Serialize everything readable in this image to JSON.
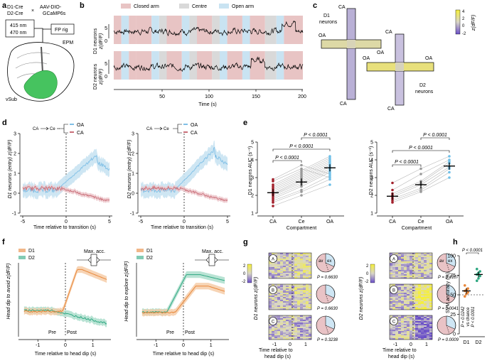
{
  "panel_labels": {
    "a": "a",
    "b": "b",
    "c": "c",
    "d": "d",
    "e": "e",
    "f": "f",
    "g": "g",
    "h": "h"
  },
  "panel_a": {
    "cre1": "D1-Cre",
    "cre2": "D2-Cre",
    "times": "×",
    "virus1": "AAV-DIO-",
    "virus2": "GCaMP6s",
    "wl1": "415 nm",
    "wl2": "470 nm",
    "rig": "FP rig",
    "maze": "EPM",
    "region": "vSub"
  },
  "panel_b": {
    "legend": [
      {
        "label": "Closed arm",
        "color": "#e8c4c4"
      },
      {
        "label": "Centre",
        "color": "#d9d9d9"
      },
      {
        "label": "Open arm",
        "color": "#c9e3f2"
      }
    ],
    "ylabel_d1": "D1 neurons",
    "ylabel_d2": "D2 neurons",
    "ylabel_unit": "z(dF/F)",
    "yticks_d1": [
      "5",
      "0"
    ],
    "yticks_d2": [
      "5",
      "0"
    ],
    "xticks": [
      "50",
      "100",
      "150",
      "200"
    ],
    "xlabel": "Time (s)"
  },
  "panel_c": {
    "d1_label1": "D1",
    "d1_label2": "neurons",
    "d2_label1": "D2",
    "d2_label2": "neurons",
    "arm_labels": [
      "CA",
      "OA",
      "OA",
      "CA",
      "CA",
      "OA",
      "OA",
      "CA"
    ],
    "colorbar_ticks": [
      "4",
      "2",
      "0",
      "-2"
    ],
    "colorbar_label": "z(dF/F)"
  },
  "panel_d": {
    "left_ylabel": "D1 neurons (entry) z(dF/F)",
    "right_ylabel": "D2 neurons (entry) z(dF/F)",
    "yticks": [
      "3",
      "2",
      "1",
      "0",
      "-1"
    ],
    "xticks": [
      "-5",
      "0",
      "5"
    ],
    "xlabel": "Time relative to transition (s)",
    "schematic": [
      "CA",
      "Ce"
    ],
    "legend": [
      {
        "label": "OA",
        "color": "#7fbfe6"
      },
      {
        "label": "CA",
        "color": "#c96e78"
      }
    ]
  },
  "panel_e": {
    "left_ylabel": "D1 neurons AUC (s⁻¹)",
    "right_ylabel": "D2 neurons AUC (s⁻¹)",
    "yticks_left": [
      "5",
      "4",
      "3",
      "2",
      "1"
    ],
    "yticks_right": [
      "5",
      "4",
      "3",
      "2",
      "1"
    ],
    "categories": [
      "CA",
      "Ce",
      "OA"
    ],
    "xlabel": "Compartment",
    "pvals": [
      "P < 0.0001",
      "P < 0.0001",
      "P < 0.0001"
    ]
  },
  "panel_f": {
    "left_ylabel": "Head dip to avoid z(dF/F)",
    "right_ylabel": "Head dip to explore z(dF/F)",
    "xticks": [
      "-1",
      "0",
      "1"
    ],
    "xlabel": "Time relative to head dip (s)",
    "pre": "Pre",
    "post": "Post",
    "max_acc": "Max. acc.",
    "legend": [
      {
        "label": "D1",
        "color": "#e8873a"
      },
      {
        "label": "D2",
        "color": "#2fa882"
      }
    ]
  },
  "panel_g": {
    "left_ylabel": "D1 neurons z(dF/F)",
    "right_ylabel": "D2 neurons z(dF/F)",
    "row_labels": [
      "A",
      "B",
      "C"
    ],
    "colorbar_ticks": [
      "2",
      "0",
      "-2"
    ],
    "pie_labels": [
      "av",
      "ex"
    ],
    "left_pvals": [
      "P = 0.6630",
      "P = 0.6630",
      "P = 0.3238"
    ],
    "right_pvals": [
      "P = 0.4107",
      "P = 0.0041",
      "P = 0.0009"
    ],
    "xticks": [
      "-1",
      "0",
      "1"
    ],
    "xlabel1": "Time relative to",
    "xlabel2": "head dip (s)"
  },
  "panel_h": {
    "ylabel": "SVM accuracy (%)",
    "yticks": [
      "100",
      "75",
      "50",
      "25",
      "0"
    ],
    "categories": [
      "D1",
      "D2"
    ],
    "pval_top": "P < 0.0001",
    "pval_side1": "P = 0.0242",
    "pval_side2": "vs chance",
    "pval_side3": "P < 0.0001"
  },
  "chart_data": [
    {
      "type": "scatter",
      "panel": "e-left",
      "categories": [
        "CA",
        "Ce",
        "OA"
      ],
      "ylabel": "D1 neurons AUC (s⁻¹)",
      "ylim": [
        1,
        5
      ],
      "means": [
        2.15,
        2.75,
        3.55
      ],
      "points": {
        "CA": [
          1.4,
          1.6,
          1.7,
          1.8,
          1.9,
          2.0,
          2.05,
          2.1,
          2.2,
          2.3,
          2.4,
          2.5,
          2.6,
          2.8,
          2.9
        ],
        "Ce": [
          2.0,
          2.2,
          2.3,
          2.5,
          2.6,
          2.7,
          2.8,
          2.9,
          3.0,
          3.1,
          3.2,
          3.3,
          3.4,
          3.5,
          3.7
        ],
        "OA": [
          2.6,
          2.9,
          3.1,
          3.3,
          3.4,
          3.5,
          3.6,
          3.7,
          3.8,
          3.9,
          4.0,
          4.1,
          4.2,
          3.0,
          3.2
        ]
      }
    },
    {
      "type": "scatter",
      "panel": "e-right",
      "categories": [
        "CA",
        "Ce",
        "OA"
      ],
      "ylabel": "D2 neurons AUC (s⁻¹)",
      "ylim": [
        1,
        5
      ],
      "means": [
        1.95,
        2.6,
        3.65
      ],
      "points": {
        "CA": [
          1.6,
          1.7,
          1.8,
          1.9,
          2.0,
          2.1,
          2.3,
          2.7
        ],
        "Ce": [
          2.2,
          2.3,
          2.4,
          2.6,
          2.7,
          2.8,
          3.2,
          3.5
        ],
        "OA": [
          3.0,
          3.3,
          3.5,
          3.6,
          3.8,
          3.9,
          4.0,
          4.2
        ]
      }
    },
    {
      "type": "scatter",
      "panel": "h",
      "categories": [
        "D1",
        "D2"
      ],
      "ylabel": "SVM accuracy (%)",
      "ylim": [
        0,
        100
      ],
      "chance": 50,
      "means": [
        55,
        76
      ],
      "points": {
        "D1": [
          48,
          51,
          53,
          55,
          56,
          58,
          62
        ],
        "D2": [
          68,
          71,
          74,
          76,
          78,
          80,
          83
        ]
      }
    }
  ]
}
